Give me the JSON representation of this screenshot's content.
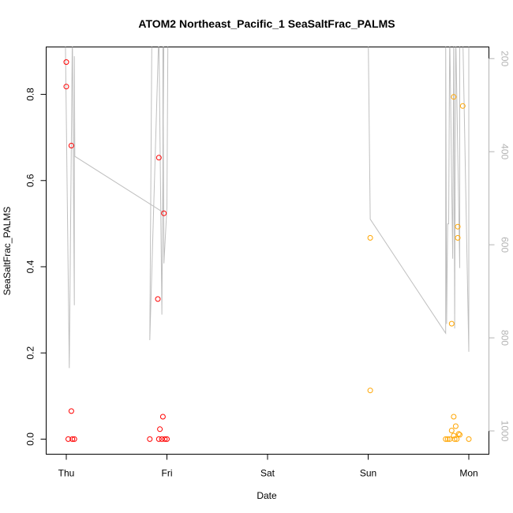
{
  "chart_data": {
    "type": "scatter",
    "title": "ATOM2 Northeast_Pacific_1 SeaSaltFrac_PALMS",
    "xlabel": "Date",
    "ylabel": "SeaSaltFrac_PALMS",
    "x_unit": "days since Thu 00:00",
    "xlim": [
      -0.2,
      4.2
    ],
    "ylim": [
      -0.035,
      0.91
    ],
    "x_ticks": [
      {
        "value": 0,
        "label": "Thu"
      },
      {
        "value": 1,
        "label": "Fri"
      },
      {
        "value": 2,
        "label": "Sat"
      },
      {
        "value": 3,
        "label": "Sun"
      },
      {
        "value": 4,
        "label": "Mon"
      }
    ],
    "y_ticks": [
      0.0,
      0.2,
      0.4,
      0.6,
      0.8
    ],
    "y_tick_labels": [
      "0.0",
      "0.2",
      "0.4",
      "0.6",
      "0.8"
    ],
    "right_axis": {
      "label": "",
      "color": "#b3b3b3",
      "ticks": [
        200,
        400,
        600,
        800,
        1000
      ],
      "tick_labels": [
        "200",
        "400",
        "600",
        "800",
        "1000"
      ],
      "lim": [
        1050,
        175
      ]
    },
    "series": [
      {
        "color": "#ff0000",
        "points": [
          [
            0.0,
            0.875
          ],
          [
            0.0,
            0.818
          ],
          [
            0.05,
            0.681
          ],
          [
            0.05,
            0.065
          ],
          [
            0.02,
            0.0
          ],
          [
            0.06,
            0.0
          ],
          [
            0.08,
            0.0
          ],
          [
            0.92,
            0.653
          ],
          [
            0.91,
            0.325
          ],
          [
            0.97,
            0.524
          ],
          [
            0.96,
            0.052
          ],
          [
            0.93,
            0.023
          ],
          [
            0.83,
            0.0
          ],
          [
            0.92,
            0.0
          ],
          [
            0.95,
            0.0
          ],
          [
            0.98,
            0.0
          ],
          [
            1.0,
            0.0
          ]
        ]
      },
      {
        "color": "#ffa500",
        "points": [
          [
            3.02,
            0.467
          ],
          [
            3.02,
            0.113
          ],
          [
            3.83,
            0.268
          ],
          [
            3.85,
            0.794
          ],
          [
            3.94,
            0.773
          ],
          [
            3.89,
            0.493
          ],
          [
            3.89,
            0.467
          ],
          [
            3.85,
            0.052
          ],
          [
            3.87,
            0.03
          ],
          [
            3.83,
            0.02
          ],
          [
            3.9,
            0.012
          ],
          [
            3.91,
            0.01
          ],
          [
            3.85,
            0.008
          ],
          [
            3.77,
            0.0
          ],
          [
            3.79,
            0.0
          ],
          [
            3.81,
            0.0
          ],
          [
            3.86,
            0.0
          ],
          [
            3.88,
            0.0
          ],
          [
            4.0,
            0.0
          ]
        ]
      }
    ],
    "altitude_line": {
      "color": "#bfbfbf",
      "points": [
        [
          -0.01,
          140
        ],
        [
          0.03,
          865
        ],
        [
          0.06,
          140
        ],
        [
          0.08,
          730
        ],
        [
          0.08,
          195
        ],
        [
          0.085,
          410
        ],
        [
          0.96,
          530
        ],
        [
          0.96,
          140
        ],
        [
          0.97,
          640
        ],
        [
          1.0,
          520
        ],
        [
          1.01,
          140
        ],
        [
          0.85,
          150
        ],
        [
          0.83,
          805
        ],
        [
          0.92,
          140
        ],
        [
          0.95,
          750
        ],
        [
          0.97,
          140
        ],
        [
          0.2,
          140
        ],
        [
          3.0,
          140
        ],
        [
          3.02,
          545
        ],
        [
          3.77,
          790
        ],
        [
          3.77,
          140
        ],
        [
          3.78,
          770
        ],
        [
          3.79,
          555
        ],
        [
          3.8,
          555
        ],
        [
          3.81,
          140
        ],
        [
          3.84,
          630
        ],
        [
          3.85,
          140
        ],
        [
          3.86,
          780
        ],
        [
          3.87,
          140
        ],
        [
          3.91,
          650
        ],
        [
          3.91,
          140
        ],
        [
          3.94,
          140
        ],
        [
          4.0,
          830
        ],
        [
          4.0,
          140
        ]
      ]
    }
  }
}
